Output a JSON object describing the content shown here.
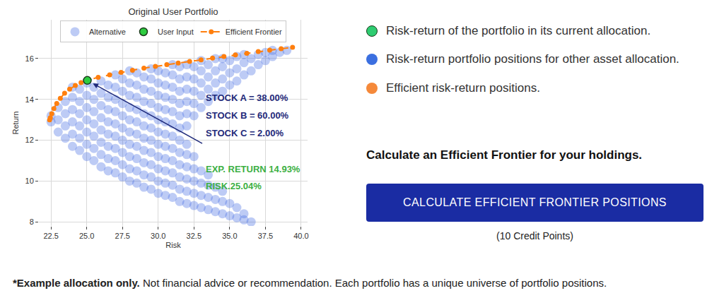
{
  "chart_data": {
    "type": "scatter",
    "title": "Original User Portfolio",
    "x_label": "Risk",
    "y_label": "Return",
    "xlim": [
      21.65,
      40.45
    ],
    "ylim": [
      7.8,
      17.9
    ],
    "xticks": [
      22.5,
      {
        "value": 25,
        "label": "25.0"
      },
      27.5,
      {
        "value": 30,
        "label": "30.0"
      },
      32.5,
      {
        "value": 35,
        "label": "35.0"
      },
      37.5,
      {
        "value": 40,
        "label": "40.0"
      }
    ],
    "yticks": [
      8,
      10,
      12,
      14,
      16
    ],
    "grid": true,
    "legend": "top",
    "series": [
      {
        "name": "Alternative",
        "color": "#4169e1",
        "marker": "circle",
        "x": [
          22.5,
          22.5,
          23,
          23,
          23,
          23.5,
          23.5,
          23.5,
          23.5,
          24,
          24,
          24,
          24,
          24,
          24,
          24.5,
          24.5,
          24.5,
          24.5,
          24.5,
          24.5,
          25,
          25,
          25,
          25,
          25,
          25,
          25,
          25.5,
          25.5,
          25.5,
          25.5,
          25.5,
          25.5,
          25.5,
          26,
          26,
          26,
          26,
          26,
          26,
          26,
          26,
          26.5,
          26.5,
          26.5,
          26.5,
          26.5,
          26.5,
          26.5,
          26.5,
          27,
          27,
          27,
          27,
          27,
          27,
          27,
          27,
          27,
          27.5,
          27.5,
          27.5,
          27.5,
          27.5,
          27.5,
          27.5,
          27.5,
          27.5,
          28,
          28,
          28,
          28,
          28,
          28,
          28,
          28,
          28,
          28,
          28.5,
          28.5,
          28.5,
          28.5,
          28.5,
          28.5,
          28.5,
          28.5,
          28.5,
          28.5,
          29,
          29,
          29,
          29,
          29,
          29,
          29,
          29,
          29,
          29,
          29.5,
          29.5,
          29.5,
          29.5,
          29.5,
          29.5,
          29.5,
          29.5,
          29.5,
          29.5,
          29.5,
          30,
          30,
          30,
          30,
          30,
          30,
          30,
          30,
          30,
          30,
          30,
          30.5,
          30.5,
          30.5,
          30.5,
          30.5,
          30.5,
          30.5,
          30.5,
          30.5,
          30.5,
          30.5,
          31,
          31,
          31,
          31,
          31,
          31,
          31,
          31,
          31,
          31,
          31,
          31,
          31.5,
          31.5,
          31.5,
          31.5,
          31.5,
          31.5,
          31.5,
          31.5,
          31.5,
          31.5,
          31.5,
          31.5,
          32,
          32,
          32,
          32,
          32,
          32,
          32,
          32,
          32,
          32,
          32,
          32,
          32.5,
          32.5,
          32.5,
          32.5,
          32.5,
          32.5,
          32.5,
          32.5,
          32.5,
          32.5,
          33,
          33,
          33,
          33,
          33,
          33,
          33,
          33,
          33,
          33.5,
          33.5,
          33.5,
          33.5,
          33.5,
          33.5,
          33.5,
          33.5,
          34,
          34,
          34,
          34,
          34,
          34,
          34,
          34.5,
          34.5,
          34.5,
          34.5,
          34.5,
          34.5,
          34.5,
          35,
          35,
          35,
          35,
          35,
          35.5,
          35.5,
          35.5,
          35.5,
          35.5,
          36,
          36,
          36,
          36,
          36,
          36.5,
          36.5,
          36.5,
          37,
          37,
          37.5,
          37.5,
          38,
          38,
          38.5,
          39
        ],
        "values": [
          12.9,
          13.2,
          12.4,
          13.0,
          13.6,
          12.1,
          12.7,
          13.3,
          13.9,
          11.7,
          12.3,
          12.9,
          13.5,
          14.1,
          14.6,
          11.5,
          12.1,
          12.7,
          13.3,
          13.9,
          14.5,
          11.2,
          11.8,
          12.4,
          13.0,
          13.6,
          14.2,
          14.8,
          11.0,
          11.6,
          12.2,
          12.8,
          13.4,
          14.0,
          14.6,
          10.7,
          11.3,
          11.9,
          12.5,
          13.1,
          13.7,
          14.3,
          14.9,
          10.5,
          11.1,
          11.7,
          12.3,
          12.9,
          13.5,
          14.1,
          14.7,
          10.4,
          11.0,
          11.6,
          12.2,
          12.8,
          13.4,
          14.0,
          14.6,
          15.2,
          10.2,
          10.8,
          11.4,
          12.0,
          12.6,
          13.2,
          13.8,
          14.4,
          15.0,
          10.0,
          10.6,
          11.2,
          11.8,
          12.4,
          13.0,
          13.6,
          14.2,
          14.8,
          15.4,
          9.9,
          10.5,
          11.1,
          11.7,
          12.3,
          12.9,
          13.5,
          14.1,
          14.7,
          15.3,
          9.7,
          10.3,
          10.9,
          11.5,
          12.1,
          12.7,
          13.3,
          13.9,
          14.5,
          15.1,
          9.6,
          10.2,
          10.8,
          11.4,
          12.0,
          12.6,
          13.2,
          13.8,
          14.4,
          15.0,
          15.5,
          9.4,
          10.0,
          10.6,
          11.2,
          11.8,
          12.4,
          13.0,
          13.6,
          14.2,
          14.8,
          15.4,
          9.3,
          9.9,
          10.5,
          11.1,
          11.7,
          12.3,
          12.9,
          13.5,
          14.1,
          14.7,
          15.3,
          9.2,
          9.8,
          10.4,
          11.0,
          11.6,
          12.2,
          12.8,
          13.4,
          14.0,
          14.6,
          15.2,
          15.7,
          9.0,
          9.6,
          10.2,
          10.8,
          11.4,
          12.0,
          12.6,
          13.2,
          13.8,
          14.4,
          15.0,
          15.6,
          8.9,
          9.5,
          10.1,
          10.7,
          11.3,
          11.8,
          12.7,
          13.3,
          13.9,
          14.5,
          15.1,
          15.7,
          8.8,
          9.4,
          10.0,
          10.6,
          11.2,
          13.2,
          13.8,
          14.4,
          15.0,
          15.6,
          8.7,
          9.3,
          9.9,
          10.5,
          13.6,
          14.2,
          14.8,
          15.4,
          15.9,
          8.6,
          9.2,
          9.8,
          10.3,
          13.9,
          14.5,
          15.1,
          15.7,
          8.5,
          9.1,
          9.7,
          14.2,
          14.8,
          15.4,
          16.0,
          8.4,
          9.0,
          9.5,
          14.4,
          15.0,
          15.6,
          16.0,
          8.3,
          8.9,
          14.7,
          15.3,
          15.9,
          8.2,
          8.7,
          14.9,
          15.5,
          16.1,
          8.1,
          8.4,
          15.2,
          15.8,
          16.2,
          8.0,
          15.4,
          16.0,
          15.7,
          16.2,
          15.9,
          16.3,
          16.1,
          16.4,
          16.3,
          16.4
        ]
      },
      {
        "name": "User Input",
        "color": "#2ecc40",
        "marker": "outlined",
        "x": [
          25.04
        ],
        "values": [
          14.93
        ]
      },
      {
        "name": "Efficient Frontier",
        "color": "#ff7f0e",
        "marker": "circle",
        "line_style": "dashed",
        "x": [
          22.4,
          22.45,
          22.55,
          22.7,
          22.9,
          23.15,
          23.45,
          23.8,
          24.2,
          24.6,
          25.0,
          25.8,
          26.6,
          27.4,
          28.2,
          29.0,
          29.8,
          30.6,
          31.4,
          32.2,
          33.0,
          33.8,
          34.6,
          35.4,
          36.2,
          37.0,
          37.8,
          38.6,
          39.4
        ],
        "values": [
          13.0,
          13.1,
          13.3,
          13.55,
          13.8,
          14.05,
          14.3,
          14.5,
          14.68,
          14.82,
          14.93,
          15.08,
          15.2,
          15.32,
          15.43,
          15.53,
          15.62,
          15.7,
          15.78,
          15.86,
          15.94,
          16.02,
          16.1,
          16.18,
          16.26,
          16.34,
          16.41,
          16.48,
          16.55
        ]
      }
    ],
    "annotations": [
      {
        "text": "STOCK A = 38.00%",
        "color": "#1f2a7a"
      },
      {
        "text": "STOCK B = 60.00%",
        "color": "#1f2a7a"
      },
      {
        "text": "STOCK C = 2.00%",
        "color": "#1f2a7a"
      },
      {
        "text": "EXP. RETURN 14.93%",
        "color": "#3cb043"
      },
      {
        "text": "RISK.25.04%",
        "color": "#3cb043"
      }
    ]
  },
  "page": {
    "legend_items": [
      {
        "text": "Risk-return of the portfolio in its current allocation.",
        "color": "#2ecc71"
      },
      {
        "text": "Risk-return portfolio positions for other asset allocation.",
        "color": "#3b6fe0"
      },
      {
        "text": "Efficient risk-return positions.",
        "color": "#f5893a"
      }
    ],
    "heading": "Calculate an Efficient Frontier for your holdings.",
    "button": "CALCULATE EFFICIENT FRONTIER POSITIONS",
    "button_note": "(10 Credit Points)",
    "footnote_bold": "*Example allocation only.",
    "footnote": "Not financial advice or recommendation. Each portfolio has a unique universe of portfolio positions."
  }
}
